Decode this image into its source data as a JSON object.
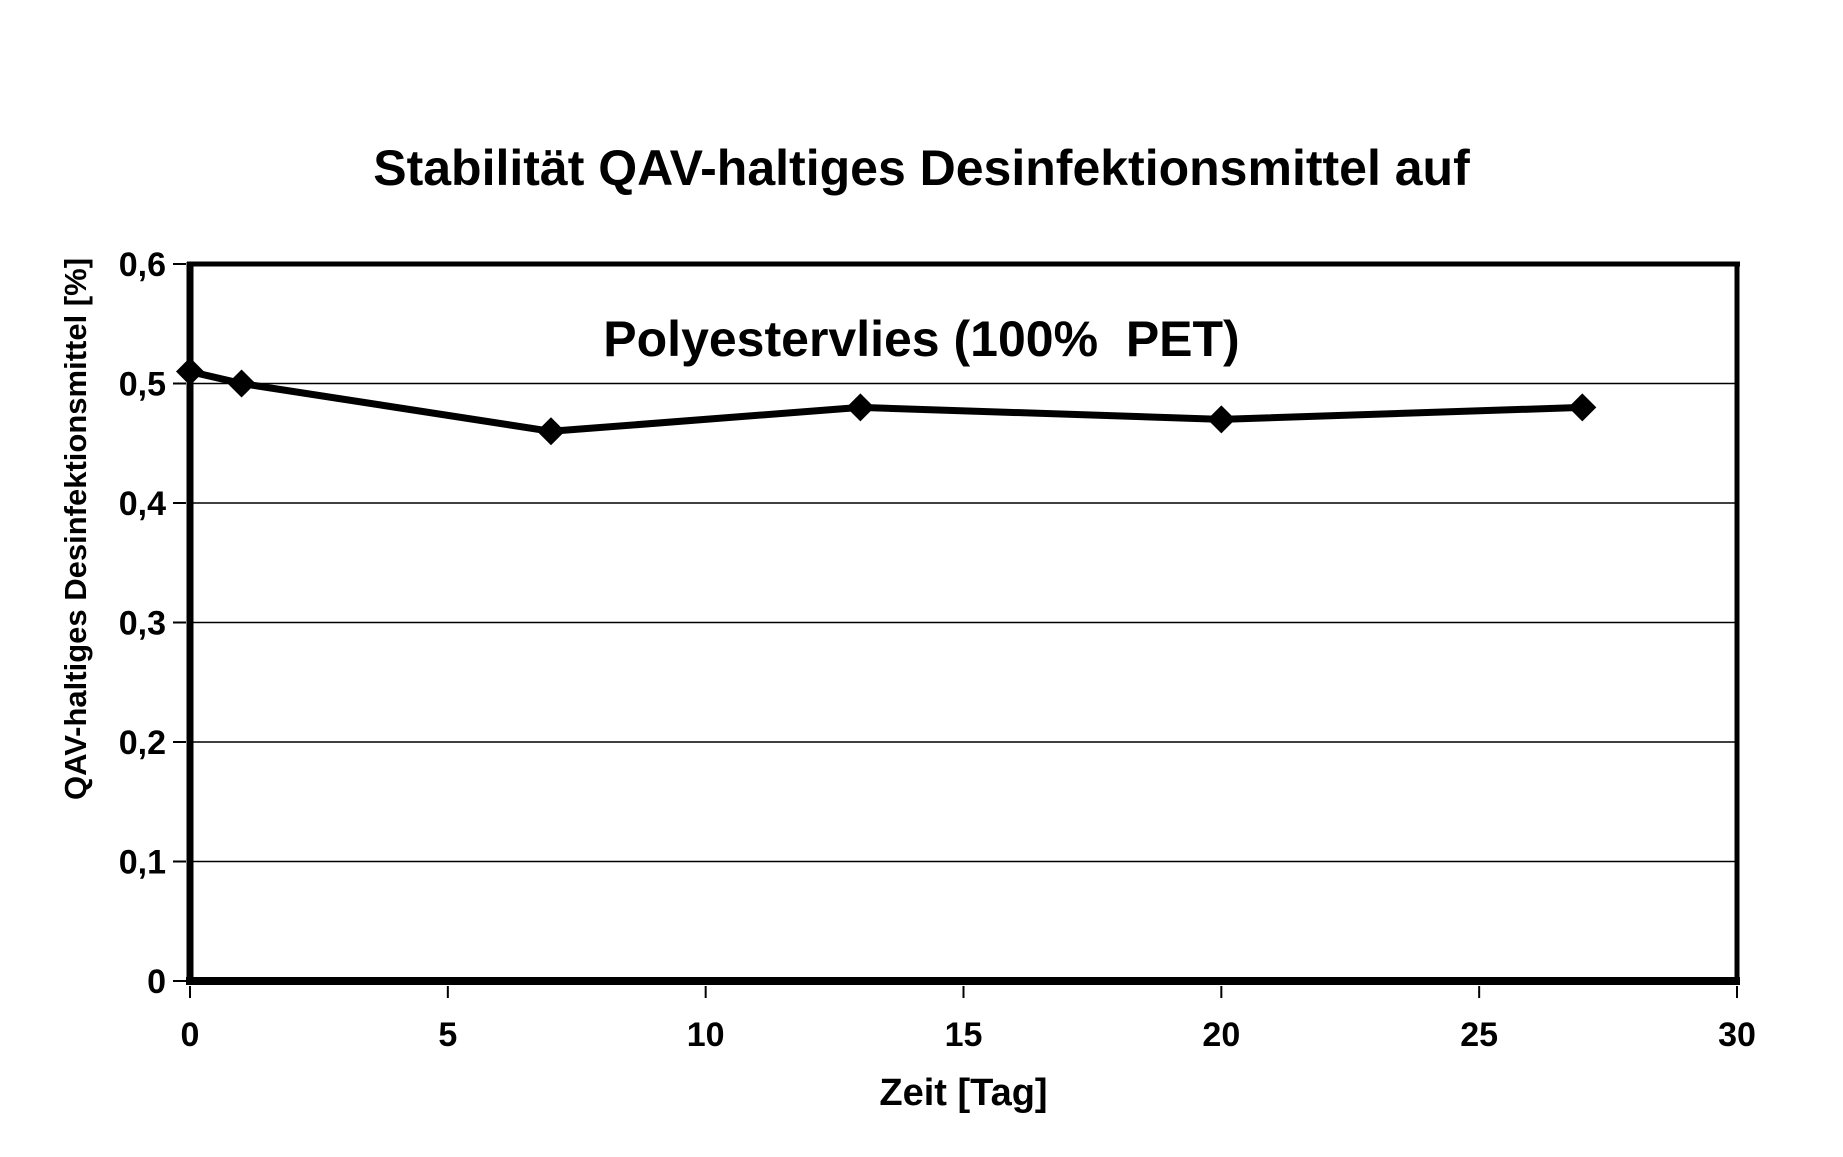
{
  "page": {
    "background": "#ffffff"
  },
  "chart_data": {
    "type": "line",
    "title": "Stabilität QAV-haltiges Desinfektionsmittel auf Polyestervlies (100%  PET)",
    "title_lines": [
      "Stabilität QAV-haltiges Desinfektionsmittel auf",
      "Polyestervlies (100%  PET)"
    ],
    "xlabel": "Zeit [Tag]",
    "ylabel": "QAV-haltiges Desinfektionsmittel [%]",
    "series": [
      {
        "name": "QAV-haltiges Desinfektionsmittel",
        "x": [
          0,
          1,
          7,
          13,
          20,
          27
        ],
        "y": [
          0.51,
          0.5,
          0.46,
          0.48,
          0.47,
          0.48
        ]
      }
    ],
    "xlim": [
      0,
      30
    ],
    "ylim": [
      0,
      0.6
    ],
    "xticks": [
      0,
      5,
      10,
      15,
      20,
      25,
      30
    ],
    "yticks": [
      0,
      0.1,
      0.2,
      0.3,
      0.4,
      0.5,
      0.6
    ],
    "xtick_labels": [
      "0",
      "5",
      "10",
      "15",
      "20",
      "25",
      "30"
    ],
    "ytick_labels": [
      "0",
      "0,1",
      "0,2",
      "0,3",
      "0,4",
      "0,5",
      "0,6"
    ],
    "grid": "horizontal gridlines at each 0.1, thin",
    "legend": "none",
    "marker": "diamond",
    "colors": {
      "line": "#000000",
      "marker": "#000000",
      "grid": "#000000",
      "axis": "#000000",
      "text": "#000000",
      "background": "#ffffff"
    }
  }
}
